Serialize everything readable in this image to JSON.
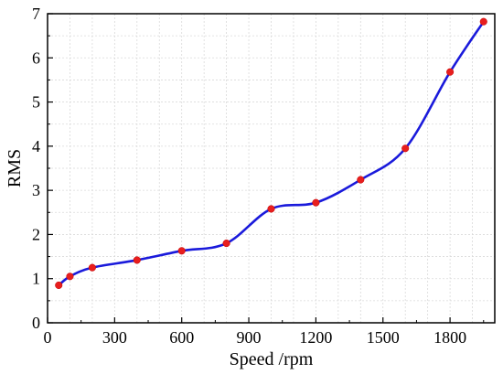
{
  "chart_data": {
    "type": "line",
    "title": "",
    "xlabel": "Speed /rpm",
    "ylabel": "RMS",
    "xlim": [
      0,
      2000
    ],
    "ylim": [
      0,
      7
    ],
    "xticks": [
      0,
      300,
      600,
      900,
      1200,
      1500,
      1800
    ],
    "yticks": [
      0,
      1,
      2,
      3,
      4,
      5,
      6,
      7
    ],
    "grid": true,
    "legend": "none",
    "series": [
      {
        "x": [
          50,
          100,
          200,
          400,
          600,
          800,
          1000,
          1200,
          1400,
          1600,
          1800,
          1950
        ],
        "y": [
          0.85,
          1.05,
          1.25,
          1.42,
          1.63,
          1.8,
          2.58,
          2.72,
          3.24,
          3.95,
          5.68,
          6.82
        ],
        "line_color": "#1a1adb",
        "marker_color": "#e81e1e"
      }
    ]
  }
}
